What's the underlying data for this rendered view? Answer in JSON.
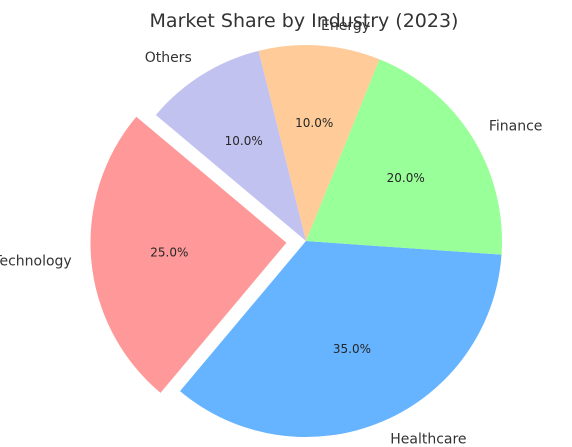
{
  "chart_data": {
    "type": "pie",
    "title": "Market Share by Industry (2023)",
    "start_angle_deg": 140,
    "direction": "counterclockwise",
    "slices": [
      {
        "label": "Technology",
        "value": 25.0,
        "pct_label": "25.0%",
        "color": "#ff9999",
        "exploded": true
      },
      {
        "label": "Healthcare",
        "value": 35.0,
        "pct_label": "35.0%",
        "color": "#66b3ff",
        "exploded": false
      },
      {
        "label": "Finance",
        "value": 20.0,
        "pct_label": "20.0%",
        "color": "#99ff99",
        "exploded": false
      },
      {
        "label": "Energy",
        "value": 10.0,
        "pct_label": "10.0%",
        "color": "#ffcc99",
        "exploded": false
      },
      {
        "label": "Others",
        "value": 10.0,
        "pct_label": "10.0%",
        "color": "#c2c2f0",
        "exploded": false
      }
    ]
  }
}
